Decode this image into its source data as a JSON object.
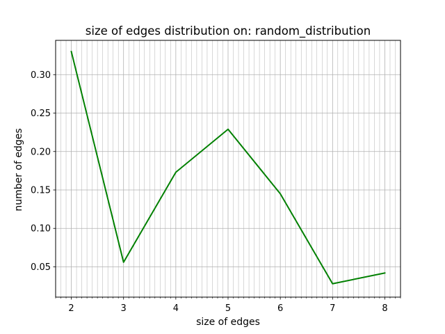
{
  "chart_data": {
    "type": "line",
    "title": "size of edges distribution on: random_distribution",
    "xlabel": "size of edges",
    "ylabel": "number of edges",
    "x": [
      2,
      3,
      4,
      5,
      6,
      7,
      8
    ],
    "series": [
      {
        "values": [
          0.33,
          0.056,
          0.173,
          0.229,
          0.145,
          0.028,
          0.042
        ],
        "color": "#008000"
      }
    ],
    "xlim": [
      1.7,
      8.3
    ],
    "ylim": [
      0.0106,
      0.3446
    ],
    "xticks": [
      2,
      3,
      4,
      5,
      6,
      7,
      8
    ],
    "xtick_labels": [
      "2",
      "3",
      "4",
      "5",
      "6",
      "7",
      "8"
    ],
    "yticks": [
      0.05,
      0.1,
      0.15,
      0.2,
      0.25,
      0.3
    ],
    "ytick_labels": [
      "0.05",
      "0.10",
      "0.15",
      "0.20",
      "0.25",
      "0.30"
    ],
    "x_minor_step": 0.1,
    "grid": true,
    "grid_color": "#b0b0b0",
    "legend": "none"
  }
}
